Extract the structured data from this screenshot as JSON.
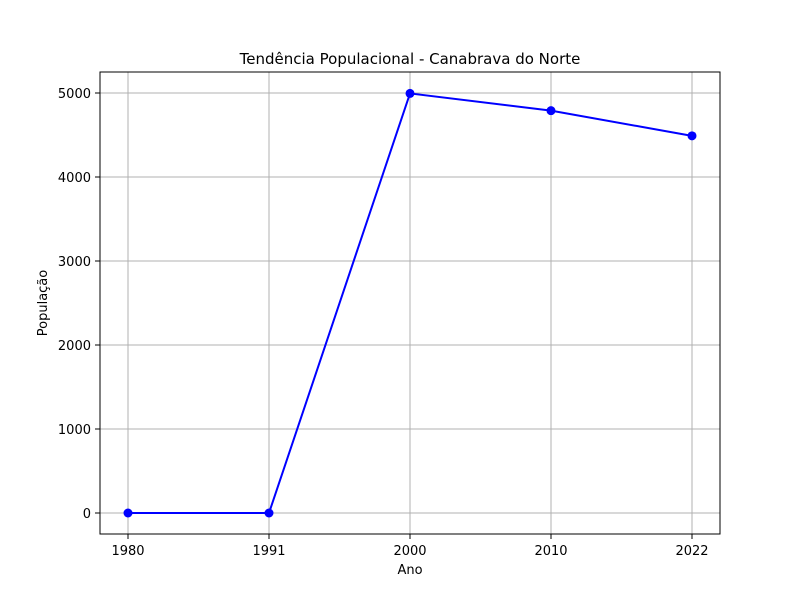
{
  "chart_data": {
    "type": "line",
    "title": "Tendência Populacional - Canabrava do Norte",
    "xlabel": "Ano",
    "ylabel": "População",
    "categories": [
      "1980",
      "1991",
      "2000",
      "2010",
      "2022"
    ],
    "series": [
      {
        "values": [
          0,
          0,
          4995,
          4790,
          4490
        ],
        "color": "#0000ff",
        "marker": "circle"
      }
    ],
    "ylim": [
      -250,
      5250
    ],
    "yticks": [
      0,
      1000,
      2000,
      3000,
      4000,
      5000
    ],
    "grid": true,
    "legend": "none"
  }
}
